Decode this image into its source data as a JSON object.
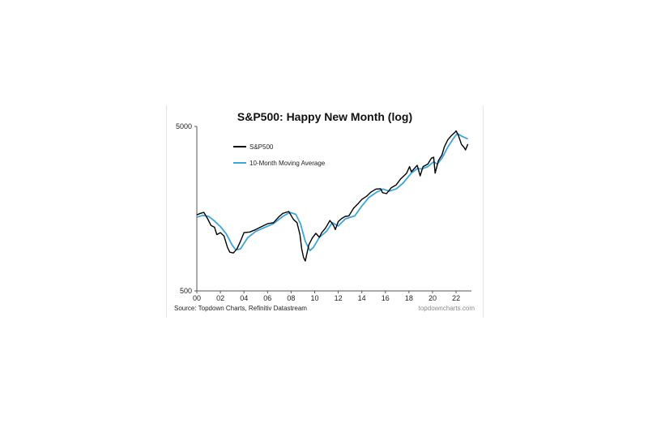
{
  "chart_data": {
    "type": "line",
    "title": "S&P500: Happy New Month (log)",
    "y_scale": "log",
    "ylim": [
      500,
      5000
    ],
    "y_ticks": [
      500,
      5000
    ],
    "xlim": [
      2000,
      2023.3
    ],
    "x_tick_labels": [
      "00",
      "02",
      "04",
      "06",
      "08",
      "10",
      "12",
      "14",
      "16",
      "18",
      "20",
      "22"
    ],
    "x_tick_values": [
      2000,
      2002,
      2004,
      2006,
      2008,
      2010,
      2012,
      2014,
      2016,
      2018,
      2020,
      2022
    ],
    "grid": false,
    "legend_position": "top-left",
    "series": [
      {
        "name": "S&P500",
        "color": "#000000",
        "x": [
          2000.0,
          2000.3,
          2000.6,
          2000.9,
          2001.2,
          2001.5,
          2001.7,
          2002.0,
          2002.3,
          2002.6,
          2002.8,
          2003.1,
          2003.4,
          2003.7,
          2004.0,
          2004.5,
          2005.0,
          2005.5,
          2006.0,
          2006.5,
          2007.0,
          2007.3,
          2007.8,
          2008.2,
          2008.5,
          2008.75,
          2008.9,
          2009.05,
          2009.2,
          2009.5,
          2009.8,
          2010.1,
          2010.4,
          2010.6,
          2010.9,
          2011.3,
          2011.6,
          2011.75,
          2012.0,
          2012.3,
          2012.6,
          2012.9,
          2013.3,
          2013.7,
          2014.0,
          2014.4,
          2014.8,
          2015.2,
          2015.6,
          2015.75,
          2016.1,
          2016.5,
          2016.9,
          2017.3,
          2017.8,
          2018.05,
          2018.2,
          2018.7,
          2018.95,
          2019.2,
          2019.6,
          2019.9,
          2020.1,
          2020.22,
          2020.5,
          2020.8,
          2021.0,
          2021.3,
          2021.6,
          2021.9,
          2022.0,
          2022.2,
          2022.45,
          2022.7,
          2022.8,
          2023.0
        ],
        "values": [
          1450,
          1480,
          1500,
          1380,
          1250,
          1220,
          1100,
          1130,
          1080,
          920,
          860,
          850,
          900,
          1000,
          1130,
          1140,
          1180,
          1230,
          1280,
          1300,
          1420,
          1480,
          1520,
          1360,
          1300,
          1100,
          900,
          800,
          760,
          950,
          1050,
          1120,
          1060,
          1130,
          1200,
          1340,
          1250,
          1180,
          1320,
          1380,
          1420,
          1430,
          1590,
          1700,
          1800,
          1880,
          2000,
          2080,
          2090,
          1980,
          1950,
          2120,
          2200,
          2400,
          2600,
          2850,
          2650,
          2900,
          2500,
          2850,
          2950,
          3200,
          3250,
          2600,
          3100,
          3350,
          3750,
          4150,
          4400,
          4600,
          4700,
          4400,
          3900,
          3700,
          3600,
          3900
        ]
      },
      {
        "name": "10-Month Moving Average",
        "color": "#3aa6dd",
        "x": [
          2000.0,
          2000.5,
          2001.0,
          2001.5,
          2002.0,
          2002.5,
          2003.0,
          2003.3,
          2003.7,
          2004.3,
          2005.0,
          2005.8,
          2006.5,
          2007.3,
          2007.9,
          2008.4,
          2008.8,
          2009.2,
          2009.6,
          2009.9,
          2010.4,
          2011.0,
          2011.5,
          2012.0,
          2012.6,
          2013.4,
          2014.0,
          2014.6,
          2015.3,
          2015.8,
          2016.3,
          2016.9,
          2017.5,
          2018.2,
          2018.7,
          2019.1,
          2019.6,
          2020.1,
          2020.4,
          2020.8,
          2021.3,
          2021.8,
          2022.1,
          2022.5,
          2023.0
        ],
        "values": [
          1400,
          1440,
          1420,
          1330,
          1230,
          1110,
          950,
          890,
          900,
          1050,
          1150,
          1220,
          1280,
          1420,
          1500,
          1460,
          1280,
          1000,
          880,
          920,
          1060,
          1150,
          1300,
          1240,
          1370,
          1430,
          1640,
          1850,
          2000,
          2080,
          2020,
          2080,
          2260,
          2600,
          2770,
          2760,
          2850,
          3050,
          2950,
          3200,
          3750,
          4250,
          4530,
          4350,
          4200
        ]
      }
    ],
    "source": "Source: Topdown Charts, Refinitiv Datastream",
    "watermark": "topdowncharts.com"
  }
}
